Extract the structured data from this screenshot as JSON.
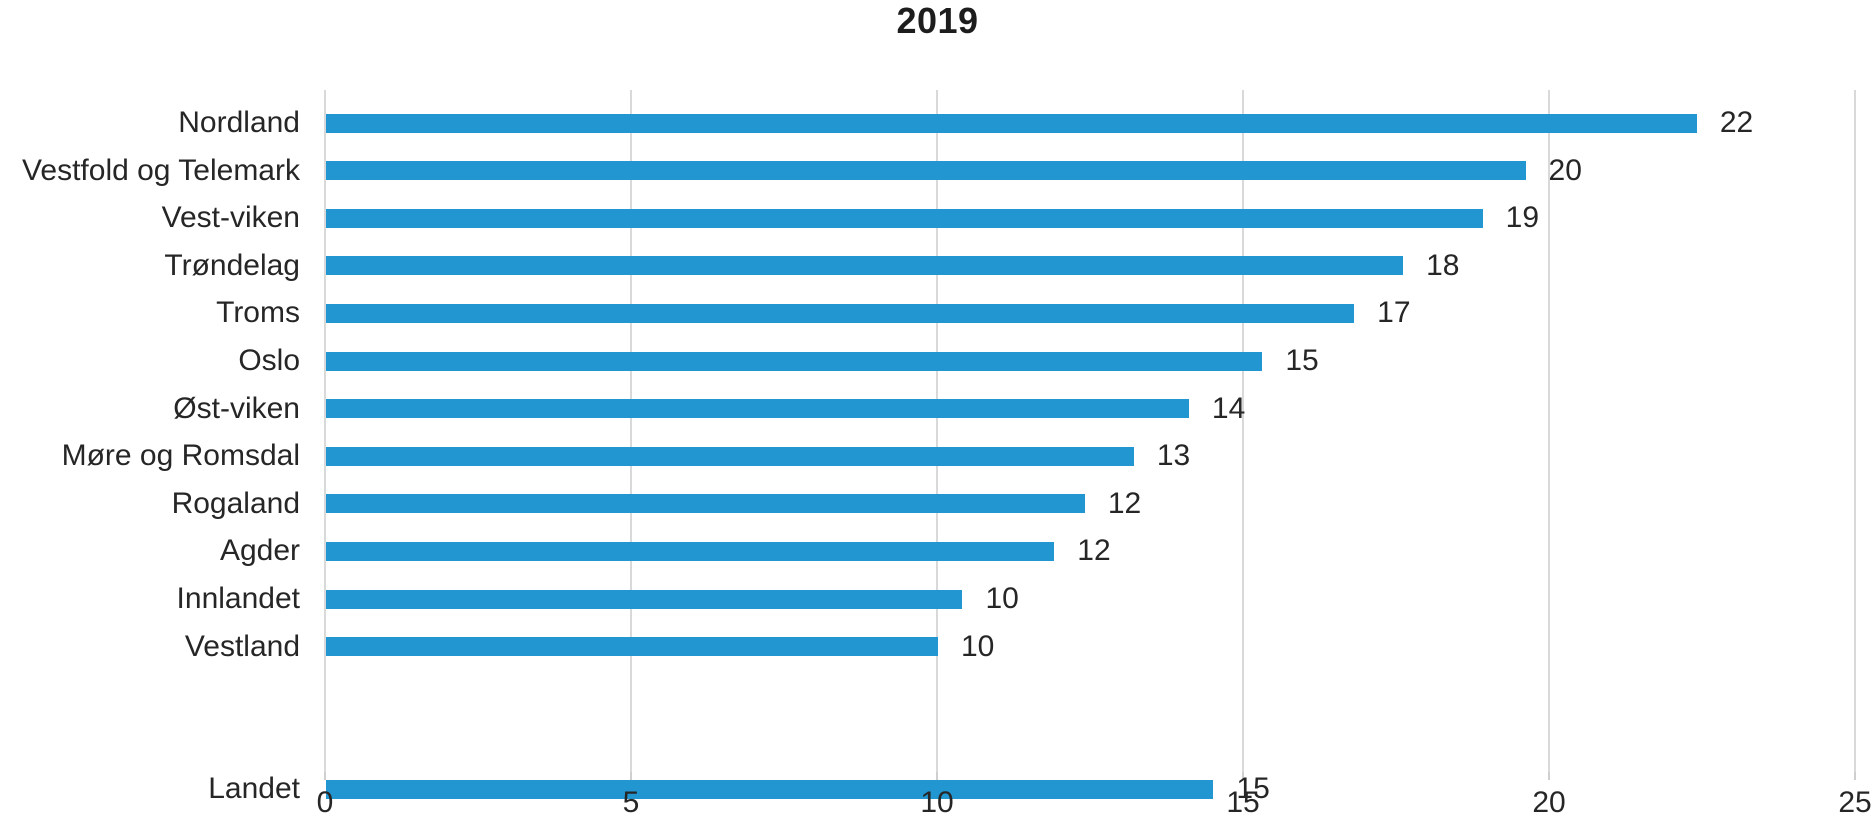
{
  "colors": {
    "bar": "#2196d0",
    "gridline": "#d9d9d9",
    "text": "#262626",
    "title_text": "#1d1d1d"
  },
  "chart_data": {
    "type": "bar",
    "orientation": "horizontal",
    "title": "2019",
    "categories": [
      "Nordland",
      "Vestfold og Telemark",
      "Vest-viken",
      "Trøndelag",
      "Troms",
      "Oslo",
      "Øst-viken",
      "Møre og Romsdal",
      "Rogaland",
      "Agder",
      "Innlandet",
      "Vestland",
      "Landet"
    ],
    "values": [
      22.4,
      19.6,
      18.9,
      17.6,
      16.8,
      15.3,
      14.1,
      13.2,
      12.4,
      11.9,
      10.4,
      10.0,
      14.5
    ],
    "value_labels": [
      "22",
      "20",
      "19",
      "18",
      "17",
      "15",
      "14",
      "13",
      "12",
      "12",
      "10",
      "10",
      "15"
    ],
    "xlabel": "",
    "ylabel": "",
    "xlim": [
      0,
      25
    ],
    "xticks": [
      0,
      5,
      10,
      15,
      20,
      25
    ],
    "xtick_labels": [
      "0",
      "5",
      "10",
      "15",
      "20",
      "25"
    ],
    "grid": "vertical",
    "legend": "none",
    "gap_before_category": "Landet"
  }
}
